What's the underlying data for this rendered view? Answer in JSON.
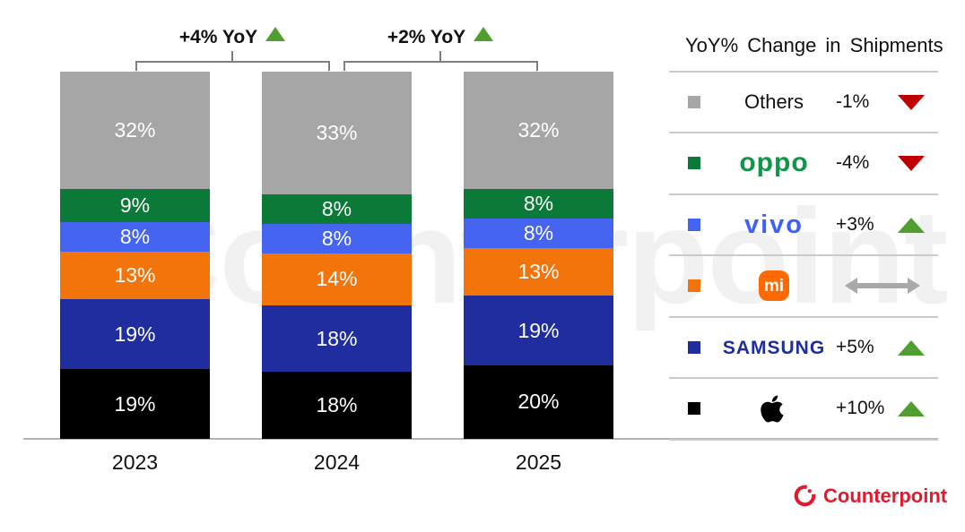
{
  "chart_data": {
    "type": "bar",
    "stacked": true,
    "categories": [
      "2023",
      "2024",
      "2025"
    ],
    "series": [
      {
        "name": "Apple",
        "color": "#000000",
        "values": [
          19,
          18,
          20
        ]
      },
      {
        "name": "Samsung",
        "color": "#1f2d9e",
        "values": [
          19,
          18,
          19
        ]
      },
      {
        "name": "Xiaomi",
        "color": "#f2740b",
        "values": [
          13,
          14,
          13
        ]
      },
      {
        "name": "vivo",
        "color": "#4565f0",
        "values": [
          8,
          8,
          8
        ]
      },
      {
        "name": "OPPO",
        "color": "#0b7a38",
        "values": [
          9,
          8,
          8
        ]
      },
      {
        "name": "Others",
        "color": "#a6a6a6",
        "values": [
          32,
          33,
          32
        ]
      }
    ],
    "value_suffix": "%",
    "annotations": [
      {
        "label": "+4% YoY",
        "direction": "up"
      },
      {
        "label": "+2% YoY",
        "direction": "up"
      }
    ],
    "legend_position": "right",
    "grid": false
  },
  "legend": {
    "title": "YoY% Change in Shipments",
    "rows": [
      {
        "brand": "Others",
        "logo_type": "others",
        "logo_text": "Others",
        "swatch": "#a6a6a6",
        "change": "-1%",
        "direction": "down"
      },
      {
        "brand": "OPPO",
        "logo_type": "oppo",
        "logo_text": "oppo",
        "swatch": "#0b7a38",
        "change": "-4%",
        "direction": "down"
      },
      {
        "brand": "vivo",
        "logo_type": "vivo",
        "logo_text": "vivo",
        "swatch": "#4565f0",
        "change": "+3%",
        "direction": "up"
      },
      {
        "brand": "Xiaomi",
        "logo_type": "mi",
        "logo_text": "mi",
        "swatch": "#f2740b",
        "change": "",
        "direction": "flat"
      },
      {
        "brand": "Samsung",
        "logo_type": "samsung",
        "logo_text": "SAMSUNG",
        "swatch": "#1f2d9e",
        "change": "+5%",
        "direction": "up"
      },
      {
        "brand": "Apple",
        "logo_type": "apple",
        "logo_text": "",
        "swatch": "#000000",
        "change": "+10%",
        "direction": "up"
      }
    ]
  },
  "colors": {
    "up_triangle": "#4f9e2f",
    "down_triangle": "#c00000",
    "flat_arrow": "#a9a9a9",
    "brand_red": "#e11a2c"
  },
  "watermark": "Counterpoint",
  "footer": {
    "logo_text": "Counterpoint"
  }
}
